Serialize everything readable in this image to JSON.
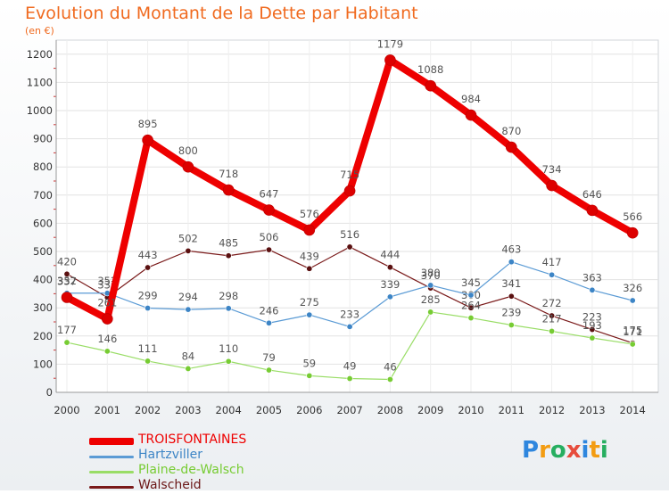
{
  "chart_data": {
    "type": "line",
    "title": "Evolution du Montant de la Dette par Habitant",
    "unit_label": "(en €)",
    "xlabel": "",
    "ylabel": "",
    "ylim": [
      0,
      1250
    ],
    "yticks": [
      0,
      100,
      200,
      300,
      400,
      500,
      600,
      700,
      800,
      900,
      1000,
      1100,
      1200
    ],
    "x": [
      "2000",
      "2001",
      "2002",
      "2003",
      "2004",
      "2005",
      "2006",
      "2007",
      "2008",
      "2009",
      "2010",
      "2011",
      "2012",
      "2013",
      "2014"
    ],
    "grid": true,
    "legend_position": "bottom-left",
    "series": [
      {
        "name": "Walscheid",
        "color": "#7a1a1a",
        "point_color": "#5a1010",
        "width": 1.2,
        "values": [
          420,
          337,
          443,
          502,
          485,
          506,
          439,
          516,
          444,
          370,
          300,
          341,
          272,
          223,
          175
        ]
      },
      {
        "name": "Plaine-de-Walsch",
        "color": "#99dd66",
        "point_color": "#77cc33",
        "width": 1.2,
        "values": [
          177,
          146,
          111,
          84,
          110,
          79,
          59,
          49,
          46,
          285,
          264,
          239,
          217,
          193,
          171
        ]
      },
      {
        "name": "Hartzviller",
        "color": "#5b9bd5",
        "point_color": "#3d85c6",
        "width": 1.2,
        "values": [
          352,
          352,
          299,
          294,
          298,
          246,
          275,
          233,
          339,
          380,
          345,
          463,
          417,
          363,
          326
        ]
      },
      {
        "name": "TROISFONTAINES",
        "color": "#ee0000",
        "point_color": "#dd0000",
        "width": 8,
        "values": [
          337,
          261,
          895,
          800,
          718,
          647,
          576,
          715,
          1179,
          1088,
          984,
          870,
          734,
          646,
          566
        ]
      }
    ],
    "data_labels": {
      "Walscheid": [
        "420",
        "337",
        "443",
        "502",
        "485",
        "506",
        "439",
        "516",
        "444",
        "370",
        "300",
        "341",
        "272",
        "223",
        "175"
      ],
      "Plaine-de-Walsch": [
        "177",
        "146",
        "111",
        "84",
        "110",
        "79",
        "59",
        "49",
        "46",
        "285",
        "264",
        "239",
        "217",
        "193",
        "171"
      ],
      "Hartzviller": [
        "352",
        "352",
        "299",
        "294",
        "298",
        "246",
        "275",
        "233",
        "339",
        "380",
        "345",
        "463",
        "417",
        "363",
        "326"
      ],
      "TROISFONTAINES": [
        "337",
        "261",
        "895",
        "800",
        "718",
        "647",
        "576",
        "715",
        "1179",
        "1088",
        "984",
        "870",
        "734",
        "646",
        "566"
      ]
    }
  },
  "legend": [
    {
      "name": "TROISFONTAINES",
      "color": "#ee0000",
      "label_color": "#ee0000",
      "thickness": 8
    },
    {
      "name": "Hartzviller",
      "color": "#5b9bd5",
      "label_color": "#3d85c6",
      "thickness": 3
    },
    {
      "name": "Plaine-de-Walsch",
      "color": "#99dd66",
      "label_color": "#77cc33",
      "thickness": 3
    },
    {
      "name": "Walscheid",
      "color": "#7a1a1a",
      "label_color": "#6a1515",
      "thickness": 3
    }
  ],
  "logo": {
    "letters": [
      "P",
      "r",
      "o",
      "x",
      "i",
      "t",
      "i"
    ],
    "colors": [
      "#2e86de",
      "#f39c12",
      "#27ae60",
      "#e74c3c",
      "#2e86de",
      "#f39c12",
      "#27ae60"
    ]
  }
}
